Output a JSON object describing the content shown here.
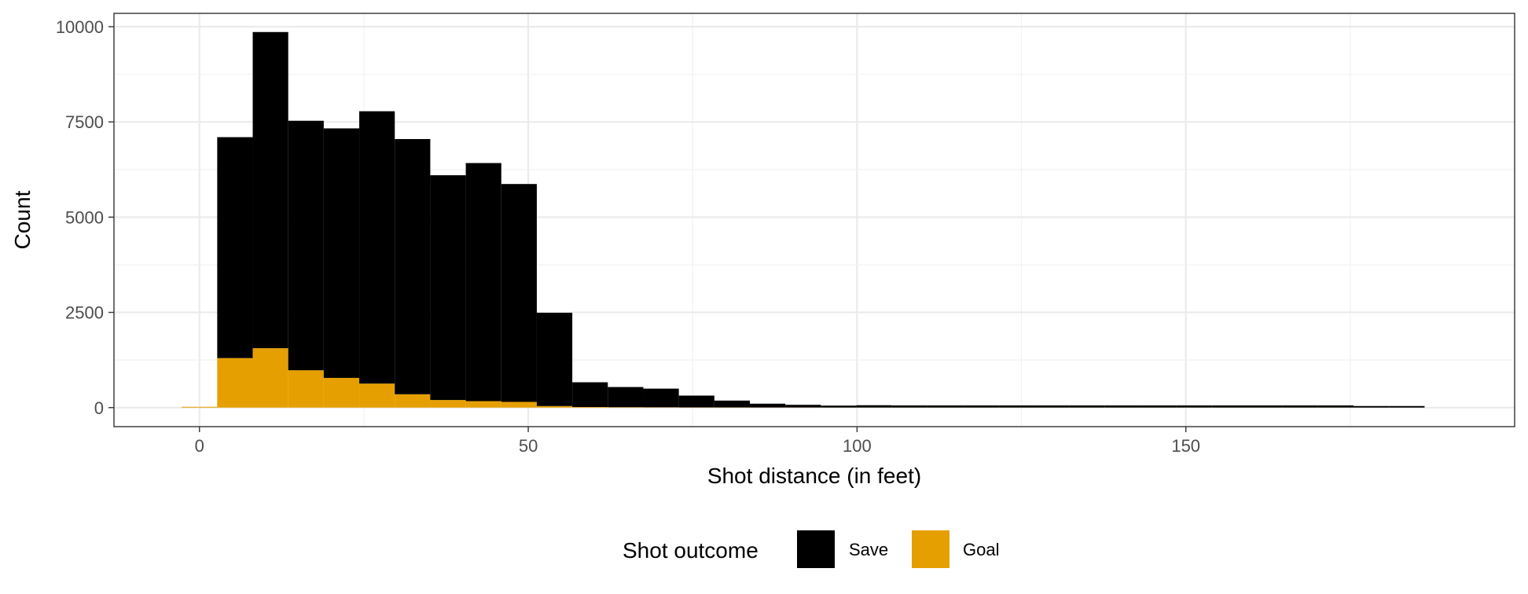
{
  "chart_data": {
    "type": "bar",
    "stacked": true,
    "bin_width": 5.4,
    "bin_centers": [
      0,
      5.4,
      10.8,
      16.2,
      21.6,
      27,
      32.4,
      37.8,
      43.2,
      48.6,
      54,
      59.4,
      64.8,
      70.2,
      75.6,
      81,
      86.4,
      91.8,
      97.2,
      102.6,
      108,
      113.4,
      118.8,
      124.2,
      129.6,
      135,
      140.4,
      145.8,
      151.2,
      156.6,
      162,
      167.4,
      172.8,
      178.2,
      183.6
    ],
    "series": [
      {
        "name": "Save",
        "color": "#000000",
        "values": [
          0,
          5800,
          8300,
          6550,
          6550,
          7150,
          6700,
          5900,
          6250,
          5720,
          2450,
          650,
          530,
          490,
          310,
          180,
          100,
          70,
          50,
          60,
          55,
          55,
          55,
          55,
          55,
          55,
          55,
          55,
          55,
          55,
          55,
          55,
          55,
          40,
          40
        ]
      },
      {
        "name": "Goal",
        "color": "#E69F00",
        "values": [
          20,
          1300,
          1560,
          980,
          780,
          630,
          350,
          200,
          170,
          150,
          40,
          15,
          10,
          8,
          5,
          4,
          3,
          3,
          2,
          2,
          2,
          2,
          2,
          2,
          2,
          2,
          2,
          2,
          2,
          2,
          2,
          2,
          2,
          1,
          1
        ]
      }
    ],
    "xlabel": "Shot distance (in feet)",
    "ylabel": "Count",
    "xlim": [
      -13,
      200
    ],
    "ylim": [
      -500,
      10350
    ],
    "x_ticks": [
      0,
      50,
      100,
      150
    ],
    "y_ticks": [
      0,
      2500,
      5000,
      7500,
      10000
    ],
    "grid": true,
    "legend_position": "bottom",
    "legend_title": "Shot outcome"
  }
}
